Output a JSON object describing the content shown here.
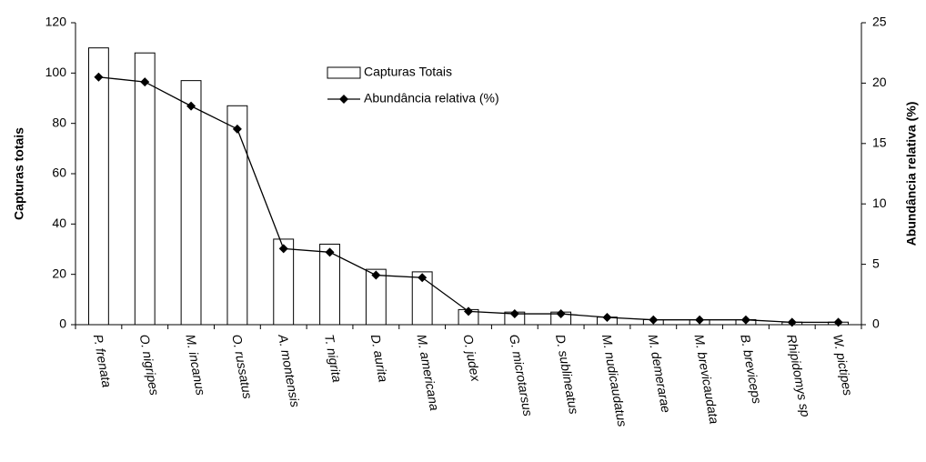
{
  "chart_data": {
    "type": "bar_line",
    "categories": [
      "P. frenata",
      "O. nigripes",
      "M. incanus",
      "O. russatus",
      "A. montensis",
      "T. nigrita",
      "D. aurita",
      "M. americana",
      "O. judex",
      "G. microtarsus",
      "D. sublineatus",
      "M. nudicaudatus",
      "M. demerarae",
      "M. brevicaudata",
      "B. breviceps",
      "Rhipidomys sp",
      "W. pictipes"
    ],
    "series": [
      {
        "name": "Capturas Totais",
        "type": "bar",
        "color": "#ffffff",
        "values": [
          110,
          108,
          97,
          87,
          34,
          32,
          22,
          21,
          6,
          5,
          5,
          3,
          2,
          2,
          2,
          1,
          1
        ]
      },
      {
        "name": "Abundância relativa (%)",
        "type": "line",
        "color": "#000000",
        "axis": "y2",
        "values": [
          20.5,
          20.1,
          18.1,
          16.2,
          6.3,
          6.0,
          4.1,
          3.9,
          1.1,
          0.9,
          0.9,
          0.6,
          0.4,
          0.4,
          0.4,
          0.2,
          0.2
        ]
      }
    ],
    "ylabel": "Capturas totais",
    "y2label": "Abundância relativa (%)",
    "ylim": [
      0,
      120
    ],
    "yticks": [
      0,
      20,
      40,
      60,
      80,
      100,
      120
    ],
    "y2lim": [
      0,
      25
    ],
    "y2ticks": [
      0,
      5,
      10,
      15,
      20,
      25
    ],
    "grid": false
  }
}
